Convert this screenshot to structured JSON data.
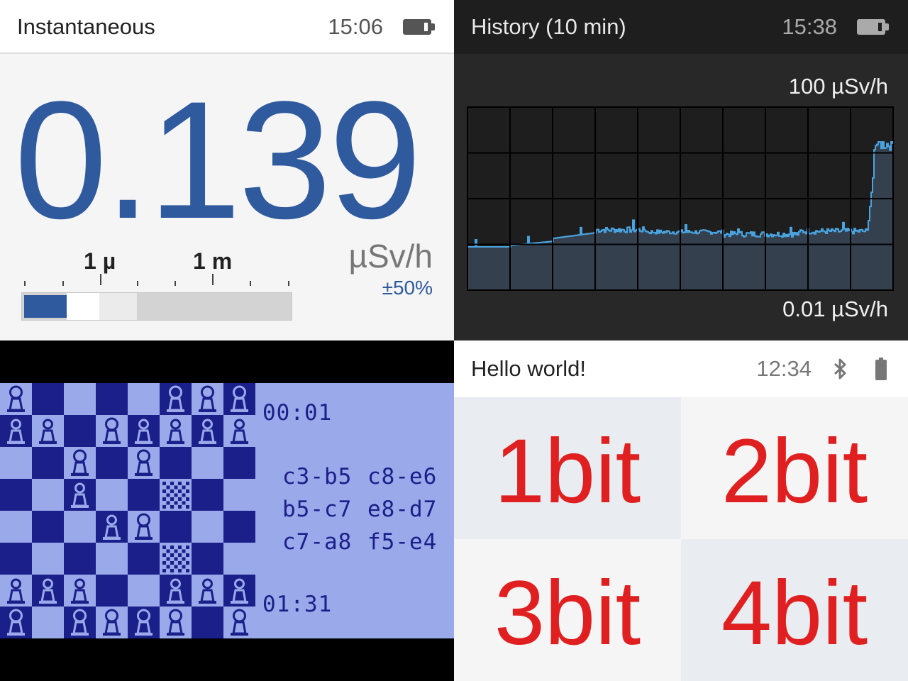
{
  "instantaneous": {
    "status": {
      "title": "Instantaneous",
      "time": "15:06",
      "battery_icon": "battery-icon"
    },
    "value": "0.139",
    "unit": "µSv/h",
    "uncertainty": "±50%",
    "scale_labels": [
      "1 µ",
      "1 m"
    ],
    "colors": {
      "accent": "#2f5a9e"
    }
  },
  "history": {
    "status": {
      "title": "History (10 min)",
      "time": "15:38",
      "battery_icon": "battery-icon"
    },
    "top_label": "100 µSv/h",
    "bottom_label": "0.01 µSv/h",
    "colors": {
      "line": "#4aa3df",
      "fill": "#34404d"
    }
  },
  "chess": {
    "time_top": "00:01",
    "time_bottom": "01:31",
    "moves": [
      [
        "c3-b5",
        "c8-e6"
      ],
      [
        "b5-c7",
        "e8-d7"
      ],
      [
        "c7-a8",
        "f5-e4"
      ]
    ],
    "colors": {
      "dark": "#1a1f8a",
      "light": "#9aa9ea"
    }
  },
  "demo": {
    "status": {
      "title": "Hello world!",
      "time": "12:34",
      "bluetooth_icon": "bluetooth-icon",
      "battery_icon": "battery-icon"
    },
    "cells": [
      "1bit",
      "2bit",
      "3bit",
      "4bit"
    ],
    "colors": {
      "text": "#e02020"
    }
  }
}
